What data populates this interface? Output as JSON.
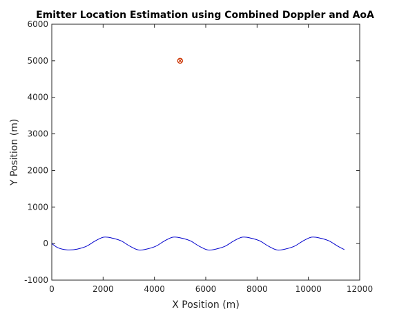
{
  "chart_data": {
    "type": "scatter",
    "title": "Emitter Location Estimation using Combined Doppler and AoA",
    "xlabel": "X Position (m)",
    "ylabel": "Y Position (m)",
    "xlim": [
      0,
      12000
    ],
    "ylim": [
      -1000,
      6000
    ],
    "xticks": [
      0,
      2000,
      4000,
      6000,
      8000,
      10000,
      12000
    ],
    "yticks": [
      -1000,
      0,
      1000,
      2000,
      3000,
      4000,
      5000,
      6000
    ],
    "grid": false,
    "series": [
      {
        "kind": "line",
        "color": "#0000cc",
        "x": [
          0,
          200,
          400,
          675,
          1000,
          1350,
          1700,
          2025,
          2350,
          2700,
          3050,
          3375,
          3700,
          4050,
          4400,
          4725,
          5050,
          5400,
          5750,
          6075,
          6400,
          6750,
          7100,
          7425,
          7750,
          8100,
          8450,
          8775,
          9100,
          9450,
          9800,
          10125,
          10450,
          10800,
          11150,
          11400
        ],
        "y": [
          0,
          -100,
          -150,
          -175,
          -150,
          -75,
          75,
          175,
          150,
          75,
          -75,
          -175,
          -150,
          -75,
          75,
          175,
          150,
          75,
          -75,
          -175,
          -150,
          -75,
          75,
          175,
          150,
          75,
          -75,
          -175,
          -150,
          -75,
          75,
          175,
          150,
          75,
          -75,
          -165
        ]
      },
      {
        "kind": "marker",
        "marker": "circle-x",
        "color": "#cc3300",
        "x": [
          5000
        ],
        "y": [
          5000
        ]
      }
    ]
  }
}
